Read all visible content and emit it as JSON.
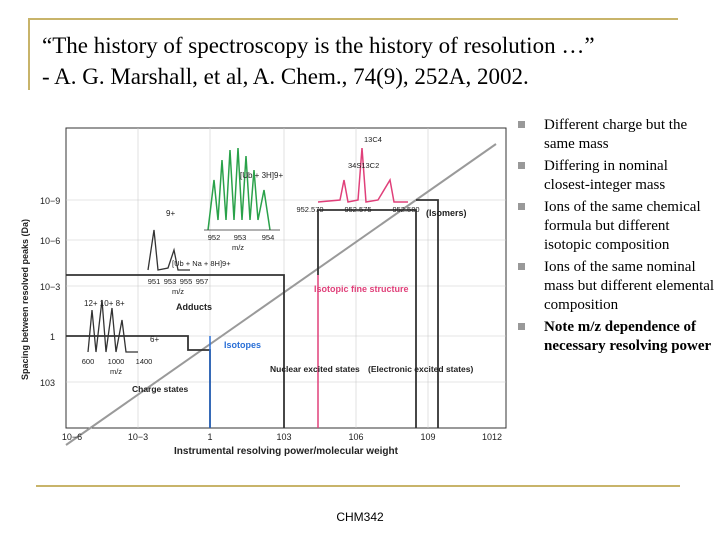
{
  "slide": {
    "title_line1": "“The history of spectroscopy is the history of resolution …”",
    "title_line2": "- A. G. Marshall, et al, A. Chem., 74(9), 252A, 2002.",
    "footer": "CHM342",
    "accent_color": "#c8b46a",
    "bullet_color": "#999999"
  },
  "bullets": [
    "Different charge but the same mass",
    "Differing in nominal closest-integer mass",
    "Ions of the same chemical formula but different isotopic composition",
    "Ions of the same nominal mass but different elemental composition",
    "Note m/z dependence of necessary resolving power"
  ],
  "figure": {
    "ylabel": "Spacing between resolved peaks (Da)",
    "xlabel": "Instrumental resolving power/molecular weight",
    "y_ticks": [
      "10−9",
      "10−6",
      "10−3",
      "1",
      "103"
    ],
    "x_ticks": [
      "10−6",
      "10−3",
      "1",
      "103",
      "106",
      "109",
      "1012"
    ],
    "labels": {
      "isomers": "(Isomers)",
      "isotopic_fine": "Isotopic fine structure",
      "adducts": "Adducts",
      "isotopes": "Isotopes",
      "nuclear": "Nuclear excited states",
      "electronic": "(Electronic excited states)",
      "charge": "Charge states",
      "ub3h": "[Ub + 3H]9+",
      "ubna": "[Ub + Na + 8H]9+",
      "c13": "13C4",
      "s34": "34S13C2",
      "mz": "m/z",
      "charge_9": "9+",
      "charge_12_10_8": "12+ 10+ 8+",
      "charge_6": "6+"
    },
    "inset_ticks_top": [
      "952",
      "953",
      "954"
    ],
    "inset_ticks_right": [
      "952.570",
      "952.575",
      "952.580"
    ],
    "inset_ticks_mid": [
      "951",
      "953",
      "955",
      "957"
    ],
    "inset_ticks_bottom": [
      "600",
      "1000",
      "1400"
    ],
    "colors": {
      "grid": "#cccccc",
      "green": "#2aa24a",
      "pink": "#e0407a",
      "blue": "#2a6fd6",
      "diag": "#9a9a9a"
    }
  }
}
